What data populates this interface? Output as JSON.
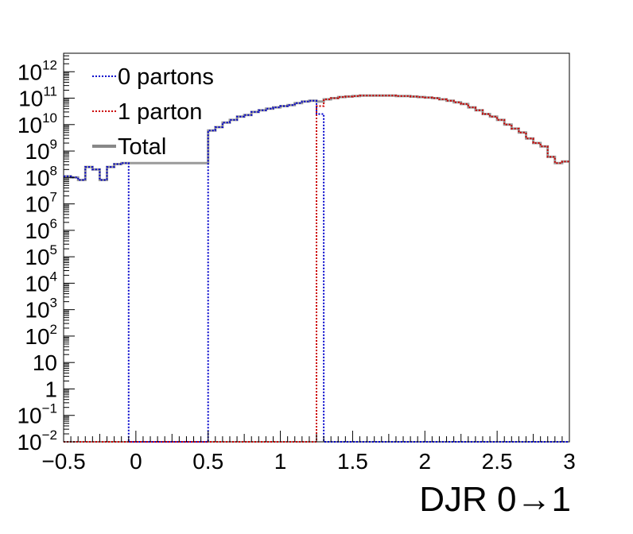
{
  "chart_data": {
    "type": "line",
    "xlabel": "DJR 0→1",
    "ylabel": "",
    "title": "",
    "xlim": [
      -0.5,
      3
    ],
    "ylim": [
      0.01,
      5000000000000.0
    ],
    "yscale": "log",
    "x_ticks": [
      "−0.5",
      "0",
      "0.5",
      "1",
      "1.5",
      "2",
      "2.5",
      "3"
    ],
    "y_ticks": [
      {
        "base": "10",
        "exp": "12"
      },
      {
        "base": "10",
        "exp": "11"
      },
      {
        "base": "10",
        "exp": "10"
      },
      {
        "base": "10",
        "exp": "9"
      },
      {
        "base": "10",
        "exp": "8"
      },
      {
        "base": "10",
        "exp": "7"
      },
      {
        "base": "10",
        "exp": "6"
      },
      {
        "base": "10",
        "exp": "5"
      },
      {
        "base": "10",
        "exp": "4"
      },
      {
        "base": "10",
        "exp": "3"
      },
      {
        "base": "10",
        "exp": "2"
      },
      {
        "base": "10",
        "exp": ""
      },
      {
        "base": "1",
        "exp": ""
      },
      {
        "base": "10",
        "exp": "−1"
      },
      {
        "base": "10",
        "exp": "−2"
      }
    ],
    "grid": false,
    "legend_position": "top-left",
    "series": [
      {
        "name": "0 partons",
        "color": "#0000cc",
        "style": "dotted",
        "x": [
          -0.5,
          -0.45,
          -0.4,
          -0.35,
          -0.3,
          -0.25,
          -0.2,
          -0.15,
          -0.1,
          -0.05,
          0.0,
          0.05,
          0.1,
          0.15,
          0.2,
          0.25,
          0.3,
          0.35,
          0.4,
          0.45,
          0.5,
          0.55,
          0.6,
          0.65,
          0.7,
          0.75,
          0.8,
          0.85,
          0.9,
          0.95,
          1.0,
          1.05,
          1.1,
          1.15,
          1.2,
          1.25,
          1.3,
          1.35,
          3.0
        ],
        "y": [
          110000000.0,
          100000000.0,
          80000000.0,
          250000000.0,
          200000000.0,
          80000000.0,
          250000000.0,
          320000000.0,
          350000000.0,
          0.01,
          0.01,
          0.01,
          0.01,
          0.01,
          0.01,
          0.01,
          0.01,
          0.01,
          0.01,
          0.01,
          6000000000.0,
          8000000000.0,
          12000000000.0,
          15000000000.0,
          20000000000.0,
          23000000000.0,
          30000000000.0,
          35000000000.0,
          40000000000.0,
          45000000000.0,
          50000000000.0,
          55000000000.0,
          65000000000.0,
          75000000000.0,
          80000000000.0,
          25000000000.0,
          0.01,
          0.01,
          0.01
        ]
      },
      {
        "name": "1 parton",
        "color": "#cc0000",
        "style": "dotted",
        "x": [
          -0.5,
          1.2,
          1.25,
          1.3,
          1.35,
          1.4,
          1.45,
          1.5,
          1.55,
          1.6,
          1.65,
          1.7,
          1.75,
          1.8,
          1.85,
          1.9,
          1.95,
          2.0,
          2.05,
          2.1,
          2.15,
          2.2,
          2.25,
          2.3,
          2.35,
          2.4,
          2.45,
          2.5,
          2.55,
          2.6,
          2.65,
          2.7,
          2.75,
          2.8,
          2.85,
          2.9,
          2.95,
          3.0
        ],
        "y": [
          0.01,
          0.01,
          50000000000.0,
          90000000000.0,
          100000000000.0,
          110000000000.0,
          115000000000.0,
          120000000000.0,
          125000000000.0,
          125000000000.0,
          125000000000.0,
          125000000000.0,
          125000000000.0,
          120000000000.0,
          120000000000.0,
          115000000000.0,
          110000000000.0,
          105000000000.0,
          100000000000.0,
          90000000000.0,
          80000000000.0,
          70000000000.0,
          60000000000.0,
          45000000000.0,
          35000000000.0,
          25000000000.0,
          20000000000.0,
          15000000000.0,
          10000000000.0,
          7000000000.0,
          5000000000.0,
          3000000000.0,
          2000000000.0,
          1500000000.0,
          600000000.0,
          350000000.0,
          400000000.0,
          400000000.0
        ]
      },
      {
        "name": "Total",
        "color": "#888888",
        "style": "solid",
        "x": [
          -0.5,
          -0.45,
          -0.4,
          -0.35,
          -0.3,
          -0.25,
          -0.2,
          -0.15,
          -0.1,
          0.5,
          0.55,
          0.6,
          0.65,
          0.7,
          0.75,
          0.8,
          0.85,
          0.9,
          0.95,
          1.0,
          1.05,
          1.1,
          1.15,
          1.2,
          1.25,
          1.3,
          1.35,
          1.4,
          1.45,
          1.5,
          1.55,
          1.6,
          1.65,
          1.7,
          1.75,
          1.8,
          1.85,
          1.9,
          1.95,
          2.0,
          2.05,
          2.1,
          2.15,
          2.2,
          2.25,
          2.3,
          2.35,
          2.4,
          2.45,
          2.5,
          2.55,
          2.6,
          2.65,
          2.7,
          2.75,
          2.8,
          2.85,
          2.9,
          2.95,
          3.0
        ],
        "y": [
          110000000.0,
          100000000.0,
          80000000.0,
          250000000.0,
          200000000.0,
          80000000.0,
          250000000.0,
          320000000.0,
          350000000.0,
          6000000000.0,
          8000000000.0,
          12000000000.0,
          15000000000.0,
          20000000000.0,
          23000000000.0,
          30000000000.0,
          35000000000.0,
          40000000000.0,
          45000000000.0,
          50000000000.0,
          55000000000.0,
          65000000000.0,
          75000000000.0,
          80000000000.0,
          75000000000.0,
          90000000000.0,
          100000000000.0,
          110000000000.0,
          115000000000.0,
          120000000000.0,
          125000000000.0,
          125000000000.0,
          125000000000.0,
          125000000000.0,
          125000000000.0,
          120000000000.0,
          120000000000.0,
          115000000000.0,
          110000000000.0,
          105000000000.0,
          100000000000.0,
          90000000000.0,
          80000000000.0,
          70000000000.0,
          60000000000.0,
          45000000000.0,
          35000000000.0,
          25000000000.0,
          20000000000.0,
          15000000000.0,
          10000000000.0,
          7000000000.0,
          5000000000.0,
          3000000000.0,
          2000000000.0,
          1500000000.0,
          600000000.0,
          350000000.0,
          400000000.0,
          400000000.0
        ]
      }
    ]
  }
}
